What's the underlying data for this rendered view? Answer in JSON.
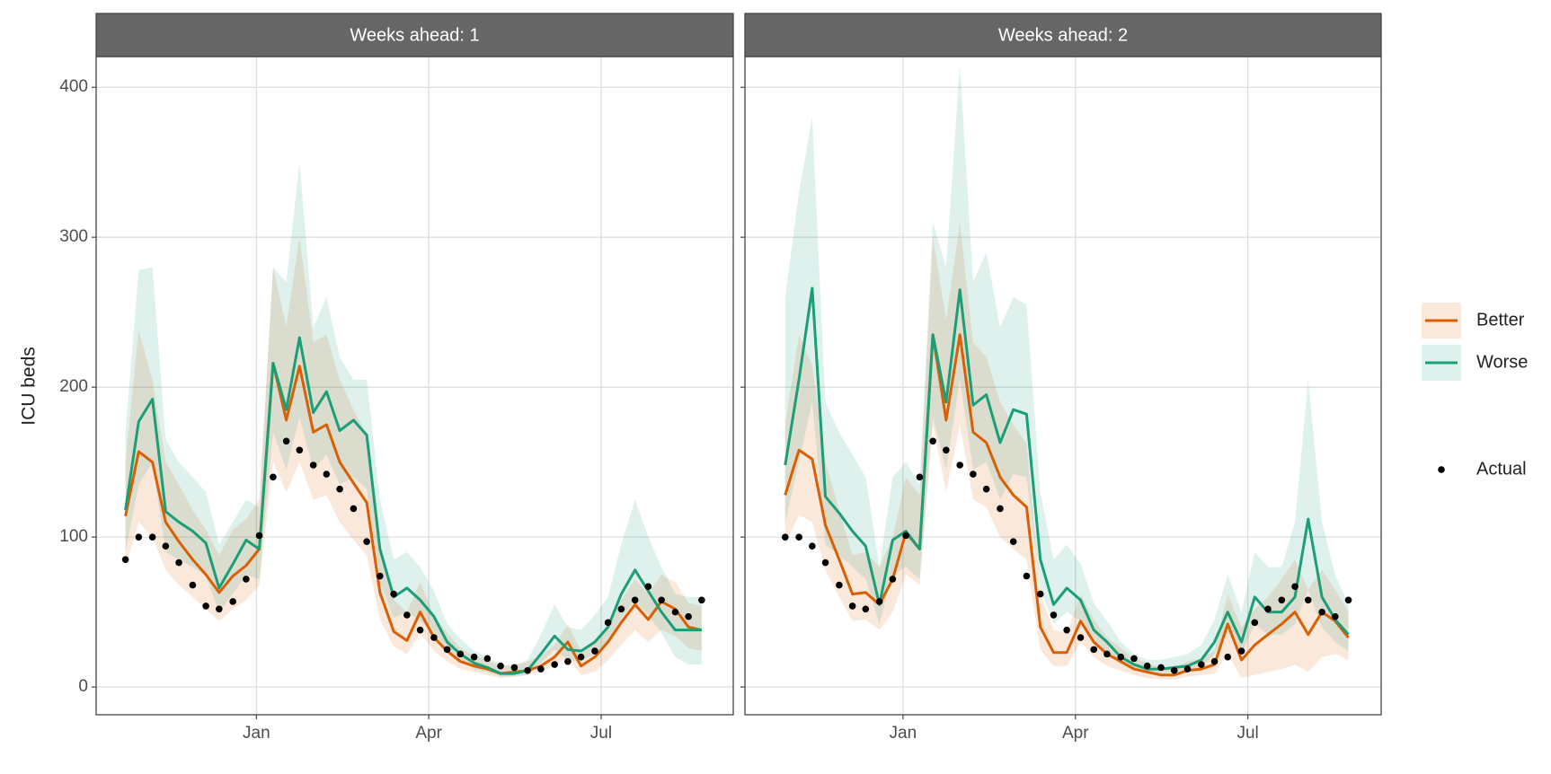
{
  "chart_data": [
    {
      "type": "line",
      "title": "Weeks ahead: 1",
      "ylabel": "ICU beds",
      "legend": "right",
      "grid": true,
      "x": [
        -2.28,
        -2.05,
        -1.81,
        -1.58,
        -1.35,
        -1.11,
        -0.88,
        -0.65,
        -0.41,
        -0.18,
        0.05,
        0.29,
        0.52,
        0.75,
        0.99,
        1.22,
        1.45,
        1.69,
        1.92,
        2.15,
        2.39,
        2.62,
        2.85,
        3.09,
        3.32,
        3.55,
        3.79,
        4.02,
        4.25,
        4.49,
        4.72,
        4.95,
        5.19,
        5.42,
        5.65,
        5.89,
        6.12,
        6.35,
        6.59,
        6.82,
        7.05,
        7.29,
        7.52,
        7.75
      ],
      "xlim": [
        -2.79,
        8.3
      ],
      "xticks": [
        {
          "value": 0,
          "label": "Jan"
        },
        {
          "value": 3,
          "label": "Apr"
        },
        {
          "value": 6,
          "label": "Jul"
        }
      ],
      "ylim": [
        -18.5,
        420.5
      ],
      "yticks": [
        0,
        100,
        200,
        300,
        400
      ],
      "series": [
        {
          "name": "Better",
          "color": "#d95f02",
          "mode": "line",
          "values": [
            114,
            157,
            150,
            110,
            97,
            85,
            75,
            63,
            74,
            81,
            92,
            216,
            178,
            214,
            170,
            175,
            150,
            136,
            123,
            63,
            37,
            31,
            50,
            33,
            24,
            17,
            14,
            12,
            9,
            10,
            11,
            14,
            20,
            30,
            14,
            20,
            30,
            43,
            55,
            45,
            57,
            52,
            40,
            38
          ],
          "lower": [
            80,
            110,
            100,
            78,
            68,
            60,
            52,
            44,
            52,
            58,
            68,
            150,
            130,
            150,
            125,
            128,
            110,
            98,
            88,
            45,
            27,
            22,
            36,
            24,
            17,
            12,
            10,
            8,
            6,
            7,
            8,
            10,
            14,
            20,
            8,
            10,
            18,
            28,
            38,
            30,
            38,
            34,
            26,
            24
          ],
          "upper": [
            150,
            238,
            205,
            150,
            135,
            118,
            105,
            88,
            105,
            112,
            125,
            280,
            240,
            300,
            230,
            235,
            205,
            185,
            168,
            95,
            58,
            50,
            70,
            48,
            36,
            26,
            21,
            18,
            14,
            15,
            17,
            21,
            28,
            42,
            24,
            30,
            42,
            58,
            72,
            62,
            75,
            70,
            56,
            54
          ]
        },
        {
          "name": "Worse",
          "color": "#1b9e77",
          "mode": "line",
          "values": [
            118,
            177,
            192,
            117,
            110,
            104,
            96,
            66,
            82,
            98,
            92,
            216,
            185,
            233,
            183,
            197,
            171,
            178,
            168,
            92,
            60,
            66,
            58,
            47,
            30,
            22,
            16,
            13,
            9,
            9,
            11,
            22,
            34,
            25,
            24,
            30,
            40,
            62,
            78,
            64,
            50,
            38,
            38,
            38
          ],
          "lower": [
            90,
            135,
            150,
            90,
            85,
            80,
            74,
            50,
            62,
            75,
            72,
            170,
            145,
            180,
            145,
            155,
            135,
            140,
            132,
            70,
            46,
            50,
            44,
            36,
            23,
            17,
            12,
            10,
            7,
            7,
            8,
            16,
            25,
            18,
            17,
            22,
            30,
            46,
            58,
            48,
            36,
            20,
            15,
            15
          ],
          "upper": [
            170,
            278,
            280,
            165,
            150,
            140,
            130,
            95,
            110,
            125,
            120,
            280,
            270,
            350,
            240,
            260,
            220,
            205,
            205,
            125,
            85,
            90,
            80,
            64,
            42,
            32,
            24,
            20,
            15,
            14,
            18,
            35,
            55,
            40,
            38,
            48,
            60,
            95,
            125,
            100,
            80,
            62,
            60,
            60
          ]
        },
        {
          "name": "Actual",
          "color": "#000000",
          "mode": "points",
          "values": [
            85,
            100,
            100,
            94,
            83,
            68,
            54,
            52,
            57,
            72,
            101,
            140,
            164,
            158,
            148,
            142,
            132,
            119,
            97,
            74,
            62,
            48,
            38,
            33,
            25,
            22,
            20,
            19,
            14,
            13,
            11,
            12,
            15,
            17,
            20,
            24,
            43,
            52,
            58,
            67,
            58,
            50,
            47,
            58
          ]
        }
      ]
    },
    {
      "type": "line",
      "title": "Weeks ahead: 2",
      "grid": true,
      "x": [
        -2.05,
        -1.81,
        -1.58,
        -1.35,
        -1.11,
        -0.88,
        -0.65,
        -0.41,
        -0.18,
        0.05,
        0.29,
        0.52,
        0.75,
        0.99,
        1.22,
        1.45,
        1.69,
        1.92,
        2.15,
        2.39,
        2.62,
        2.85,
        3.09,
        3.32,
        3.55,
        3.79,
        4.02,
        4.25,
        4.49,
        4.72,
        4.95,
        5.19,
        5.42,
        5.65,
        5.89,
        6.12,
        6.35,
        6.59,
        6.82,
        7.05,
        7.29,
        7.52,
        7.75
      ],
      "xlim": [
        -2.75,
        8.32
      ],
      "xticks": [
        {
          "value": 0,
          "label": "Jan"
        },
        {
          "value": 3,
          "label": "Apr"
        },
        {
          "value": 6,
          "label": "Jul"
        }
      ],
      "ylim": [
        -18.5,
        420.5
      ],
      "yticks": [
        0,
        100,
        200,
        300,
        400
      ],
      "series": [
        {
          "name": "Better",
          "color": "#d95f02",
          "mode": "line",
          "values": [
            128,
            158,
            152,
            108,
            85,
            62,
            63,
            55,
            72,
            103,
            92,
            235,
            178,
            235,
            170,
            163,
            140,
            128,
            120,
            40,
            23,
            23,
            44,
            30,
            22,
            17,
            12,
            10,
            8,
            8,
            11,
            12,
            15,
            42,
            18,
            28,
            35,
            42,
            50,
            35,
            50,
            44,
            33
          ],
          "lower": [
            95,
            115,
            110,
            78,
            60,
            44,
            45,
            38,
            50,
            75,
            68,
            175,
            130,
            175,
            125,
            120,
            100,
            92,
            85,
            25,
            14,
            14,
            30,
            20,
            14,
            11,
            8,
            6,
            5,
            5,
            7,
            8,
            9,
            22,
            6,
            8,
            10,
            12,
            15,
            10,
            20,
            22,
            18
          ],
          "upper": [
            175,
            235,
            215,
            150,
            118,
            88,
            90,
            80,
            100,
            140,
            128,
            300,
            245,
            310,
            230,
            220,
            190,
            175,
            162,
            62,
            38,
            36,
            62,
            45,
            33,
            26,
            19,
            16,
            13,
            13,
            17,
            19,
            24,
            62,
            40,
            52,
            60,
            72,
            85,
            65,
            78,
            65,
            50
          ]
        },
        {
          "name": "Worse",
          "color": "#1b9e77",
          "mode": "line",
          "values": [
            148,
            205,
            266,
            127,
            116,
            104,
            94,
            55,
            98,
            104,
            92,
            235,
            190,
            265,
            188,
            195,
            163,
            185,
            182,
            85,
            55,
            66,
            58,
            38,
            30,
            20,
            15,
            12,
            12,
            13,
            14,
            18,
            30,
            50,
            30,
            60,
            50,
            50,
            60,
            112,
            60,
            45,
            35
          ],
          "lower": [
            110,
            150,
            190,
            95,
            88,
            80,
            72,
            42,
            75,
            80,
            72,
            180,
            145,
            205,
            145,
            150,
            125,
            142,
            140,
            65,
            42,
            50,
            44,
            29,
            23,
            15,
            11,
            9,
            9,
            10,
            10,
            13,
            22,
            36,
            22,
            42,
            35,
            35,
            42,
            65,
            40,
            30,
            24
          ],
          "upper": [
            260,
            330,
            380,
            190,
            170,
            155,
            140,
            80,
            140,
            150,
            135,
            310,
            280,
            415,
            270,
            290,
            240,
            260,
            255,
            130,
            85,
            95,
            82,
            56,
            44,
            30,
            22,
            18,
            18,
            20,
            22,
            28,
            45,
            75,
            50,
            90,
            80,
            80,
            110,
            205,
            110,
            75,
            55
          ]
        },
        {
          "name": "Actual",
          "color": "#000000",
          "mode": "points",
          "values": [
            100,
            100,
            94,
            83,
            68,
            54,
            52,
            57,
            72,
            101,
            140,
            164,
            158,
            148,
            142,
            132,
            119,
            97,
            74,
            62,
            48,
            38,
            33,
            25,
            22,
            20,
            19,
            14,
            13,
            11,
            12,
            15,
            17,
            20,
            24,
            43,
            52,
            58,
            67,
            58,
            50,
            47,
            58
          ]
        }
      ]
    }
  ]
}
